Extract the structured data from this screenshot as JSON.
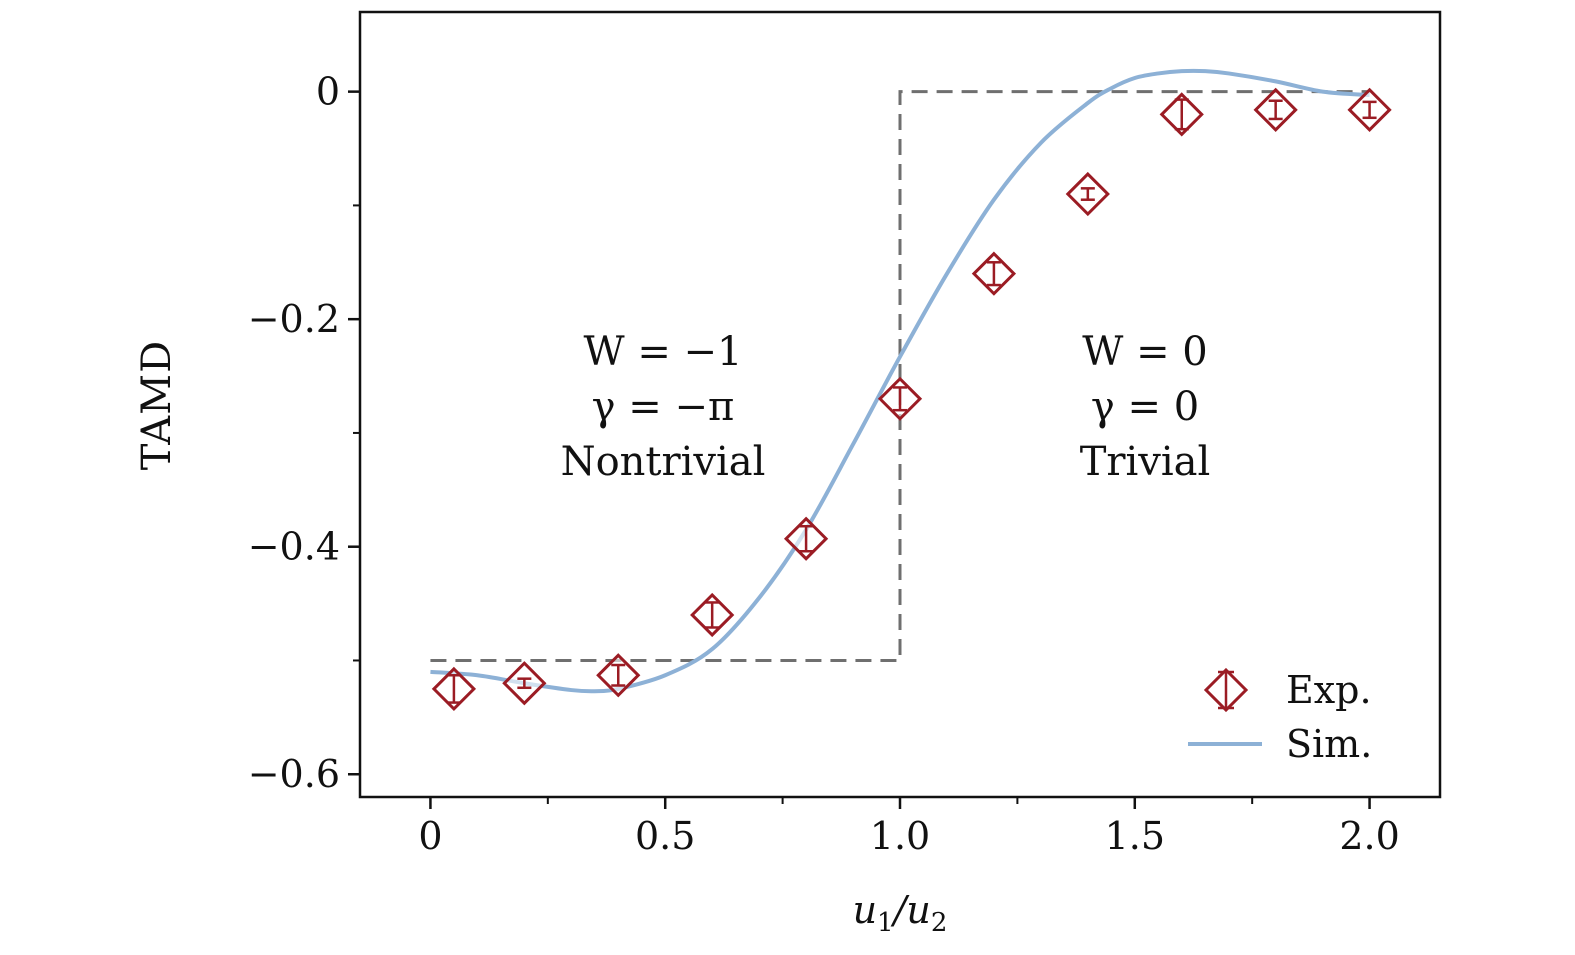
{
  "chart_data": {
    "type": "scatter",
    "xlabel": {
      "base": "u",
      "sub1": "1",
      "slash": "/",
      "base2": "u",
      "sub2": "2"
    },
    "ylabel": "TAMD",
    "xlim": [
      -0.15,
      2.15
    ],
    "ylim": [
      -0.62,
      0.07
    ],
    "x_ticks": [
      0,
      0.5,
      1.0,
      1.5,
      2.0
    ],
    "x_tick_labels": [
      "0",
      "0.5",
      "1.0",
      "1.5",
      "2.0"
    ],
    "x_minor_ticks": [
      0.25,
      0.75,
      1.25,
      1.75
    ],
    "y_ticks": [
      0,
      -0.2,
      -0.4,
      -0.6
    ],
    "y_tick_labels": [
      "0",
      "−0.2",
      "−0.4",
      "−0.6"
    ],
    "y_minor_ticks": [
      -0.1,
      -0.3,
      -0.5
    ],
    "colors": {
      "exp": "#9b1c24",
      "sim": "#8db1d6",
      "step": "#6f6f6f",
      "axis": "#111111"
    },
    "series": [
      {
        "name": "Exp.",
        "kind": "errorbar",
        "x": [
          0.05,
          0.2,
          0.4,
          0.6,
          0.8,
          1.0,
          1.2,
          1.4,
          1.6,
          1.8,
          2.0
        ],
        "y": [
          -0.525,
          -0.52,
          -0.513,
          -0.46,
          -0.393,
          -0.27,
          -0.16,
          -0.09,
          -0.02,
          -0.016,
          -0.016
        ],
        "err": [
          0.012,
          0.004,
          0.009,
          0.011,
          0.011,
          0.01,
          0.01,
          0.005,
          0.013,
          0.008,
          0.007
        ]
      },
      {
        "name": "Sim.",
        "kind": "line",
        "x": [
          0,
          0.1,
          0.2,
          0.3,
          0.35,
          0.4,
          0.5,
          0.6,
          0.7,
          0.8,
          0.9,
          1.0,
          1.1,
          1.2,
          1.3,
          1.4,
          1.45,
          1.5,
          1.55,
          1.6,
          1.65,
          1.7,
          1.8,
          1.9,
          2.0
        ],
        "y": [
          -0.51,
          -0.513,
          -0.52,
          -0.526,
          -0.527,
          -0.525,
          -0.513,
          -0.49,
          -0.445,
          -0.385,
          -0.31,
          -0.233,
          -0.16,
          -0.095,
          -0.045,
          -0.01,
          0.003,
          0.012,
          0.016,
          0.018,
          0.018,
          0.016,
          0.009,
          0.0,
          -0.003
        ]
      },
      {
        "name": "step",
        "kind": "dashed-step",
        "x": [
          0,
          1.0,
          1.0,
          2.0
        ],
        "y": [
          -0.5,
          -0.5,
          0,
          0
        ]
      }
    ],
    "annotations": {
      "left": {
        "line1": "W = −1",
        "line2": "γ = −π",
        "line3": "Nontrivial",
        "x": 0.5,
        "y": -0.23
      },
      "right": {
        "line1": "W = 0",
        "line2": "γ = 0",
        "line3": "Trivial",
        "x": 1.53,
        "y": -0.23
      }
    },
    "legend": {
      "position": "bottom-right",
      "entries": [
        "Exp.",
        "Sim."
      ]
    }
  }
}
